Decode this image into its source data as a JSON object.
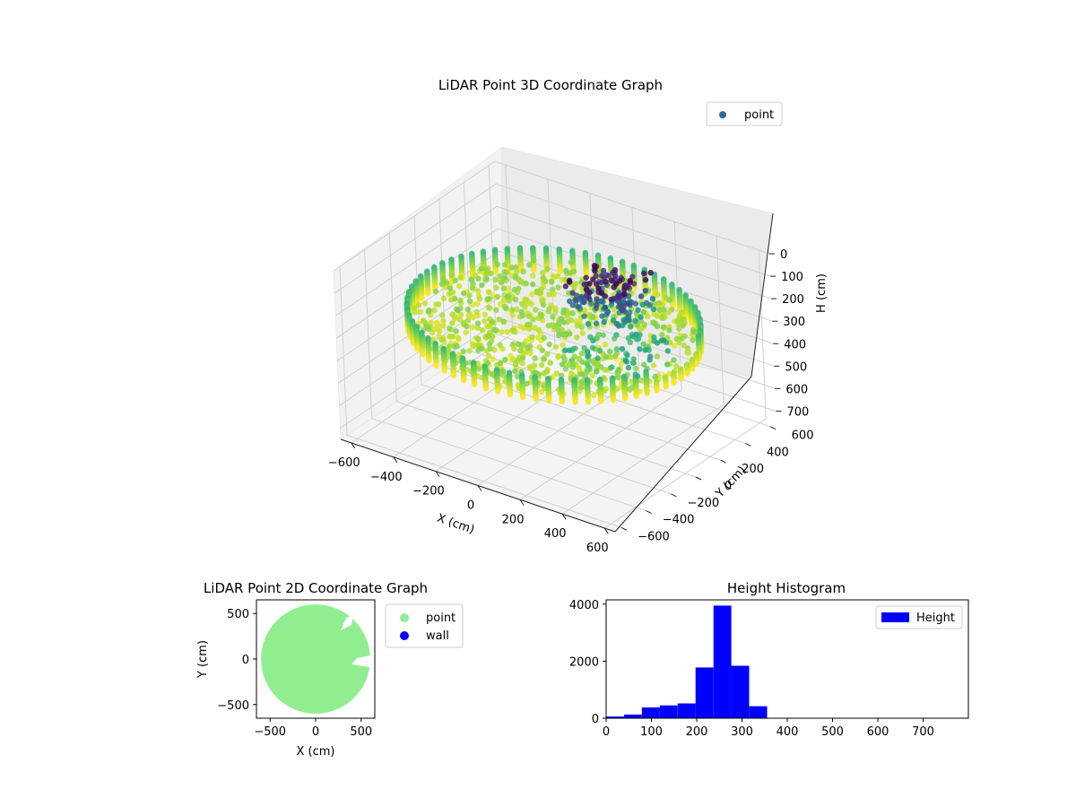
{
  "chart_data": [
    {
      "type": "scatter3d",
      "title": "LiDAR Point 3D Coordinate Graph",
      "xlabel": "X (cm)",
      "ylabel": "Y (cm)",
      "zlabel": "H (cm)",
      "xlim": [
        -650,
        650
      ],
      "ylim": [
        -650,
        650
      ],
      "zlim": [
        0,
        750
      ],
      "z_inverted": true,
      "x_ticks": [
        "−600",
        "−400",
        "−200",
        "0",
        "200",
        "400",
        "600"
      ],
      "y_ticks": [
        "−600",
        "−400",
        "−200",
        "0",
        "200",
        "400",
        "600"
      ],
      "z_ticks": [
        "0",
        "100",
        "200",
        "300",
        "400",
        "500",
        "600",
        "700"
      ],
      "colormap": "viridis",
      "legend": [
        {
          "label": "point",
          "color": "#31688e"
        }
      ],
      "legend_position": "upper right",
      "grid": true,
      "wall_radius": 600,
      "wall_height": [
        230,
        330
      ]
    },
    {
      "type": "scatter",
      "title": "LiDAR Point 2D Coordinate Graph",
      "xlabel": "X (cm)",
      "ylabel": "Y (cm)",
      "xlim": [
        -650,
        650
      ],
      "ylim": [
        -650,
        650
      ],
      "x_ticks": [
        "−500",
        "0",
        "500"
      ],
      "y_ticks": [
        "−500",
        "0",
        "500"
      ],
      "series": [
        {
          "name": "point",
          "color": "#90ee90",
          "shape": "disc",
          "radius": 600
        },
        {
          "name": "wall",
          "color": "#0000ff"
        }
      ],
      "legend_position": "outside right"
    },
    {
      "type": "bar",
      "title": "Height Histogram",
      "xlim": [
        0,
        800
      ],
      "ylim": [
        0,
        4150
      ],
      "x_ticks": [
        "0",
        "100",
        "200",
        "300",
        "400",
        "500",
        "600",
        "700"
      ],
      "y_ticks": [
        "0",
        "2000",
        "4000"
      ],
      "bin_edges": [
        0,
        39.5,
        79,
        118.5,
        158,
        197.5,
        237,
        276.5,
        316,
        355.5,
        395,
        434.5,
        474,
        513.5,
        553,
        592.5,
        632,
        671.5,
        711,
        750.5,
        790
      ],
      "values": [
        60,
        130,
        380,
        450,
        520,
        1780,
        3950,
        1840,
        420,
        0,
        0,
        0,
        0,
        0,
        0,
        0,
        0,
        0,
        0,
        0
      ],
      "series": [
        {
          "name": "Height",
          "color": "#0000ff"
        }
      ],
      "legend_position": "upper right"
    }
  ]
}
